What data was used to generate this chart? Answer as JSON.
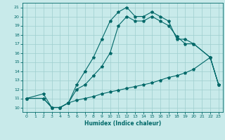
{
  "xlabel": "Humidex (Indice chaleur)",
  "bg_color": "#c8eaea",
  "grid_color": "#9ecece",
  "line_color": "#006868",
  "xlim": [
    -0.5,
    23.5
  ],
  "ylim": [
    9.5,
    21.5
  ],
  "xticks": [
    0,
    1,
    2,
    3,
    4,
    5,
    6,
    7,
    8,
    9,
    10,
    11,
    12,
    13,
    14,
    15,
    16,
    17,
    18,
    19,
    20,
    21,
    22,
    23
  ],
  "yticks": [
    10,
    11,
    12,
    13,
    14,
    15,
    16,
    17,
    18,
    19,
    20,
    21
  ],
  "line1_x": [
    0,
    2,
    3,
    4,
    5,
    6,
    7,
    8,
    9,
    10,
    11,
    12,
    13,
    14,
    15,
    16,
    17,
    18,
    19,
    20,
    22,
    23
  ],
  "line1_y": [
    11,
    11.5,
    10,
    10,
    10.5,
    12.5,
    14,
    15.5,
    17.5,
    19.5,
    20.5,
    21,
    20,
    20,
    20.5,
    20,
    19.5,
    17.5,
    17.5,
    17,
    15.5,
    12.5
  ],
  "line2_x": [
    0,
    2,
    3,
    4,
    5,
    6,
    7,
    8,
    9,
    10,
    11,
    12,
    13,
    14,
    15,
    16,
    17,
    18,
    19,
    20,
    22,
    23
  ],
  "line2_y": [
    11,
    11,
    10,
    10,
    10.5,
    12,
    12.5,
    13.5,
    14.5,
    16,
    19,
    20,
    19.5,
    19.5,
    20,
    19.5,
    19,
    17.8,
    17,
    17,
    15.5,
    12.5
  ],
  "line3_x": [
    0,
    2,
    3,
    4,
    5,
    6,
    7,
    8,
    9,
    10,
    11,
    12,
    13,
    14,
    15,
    16,
    17,
    18,
    19,
    20,
    22,
    23
  ],
  "line3_y": [
    11,
    11,
    10,
    10,
    10.5,
    10.8,
    11.0,
    11.2,
    11.5,
    11.7,
    11.9,
    12.1,
    12.3,
    12.5,
    12.7,
    13.0,
    13.3,
    13.5,
    13.8,
    14.2,
    15.5,
    12.5
  ]
}
